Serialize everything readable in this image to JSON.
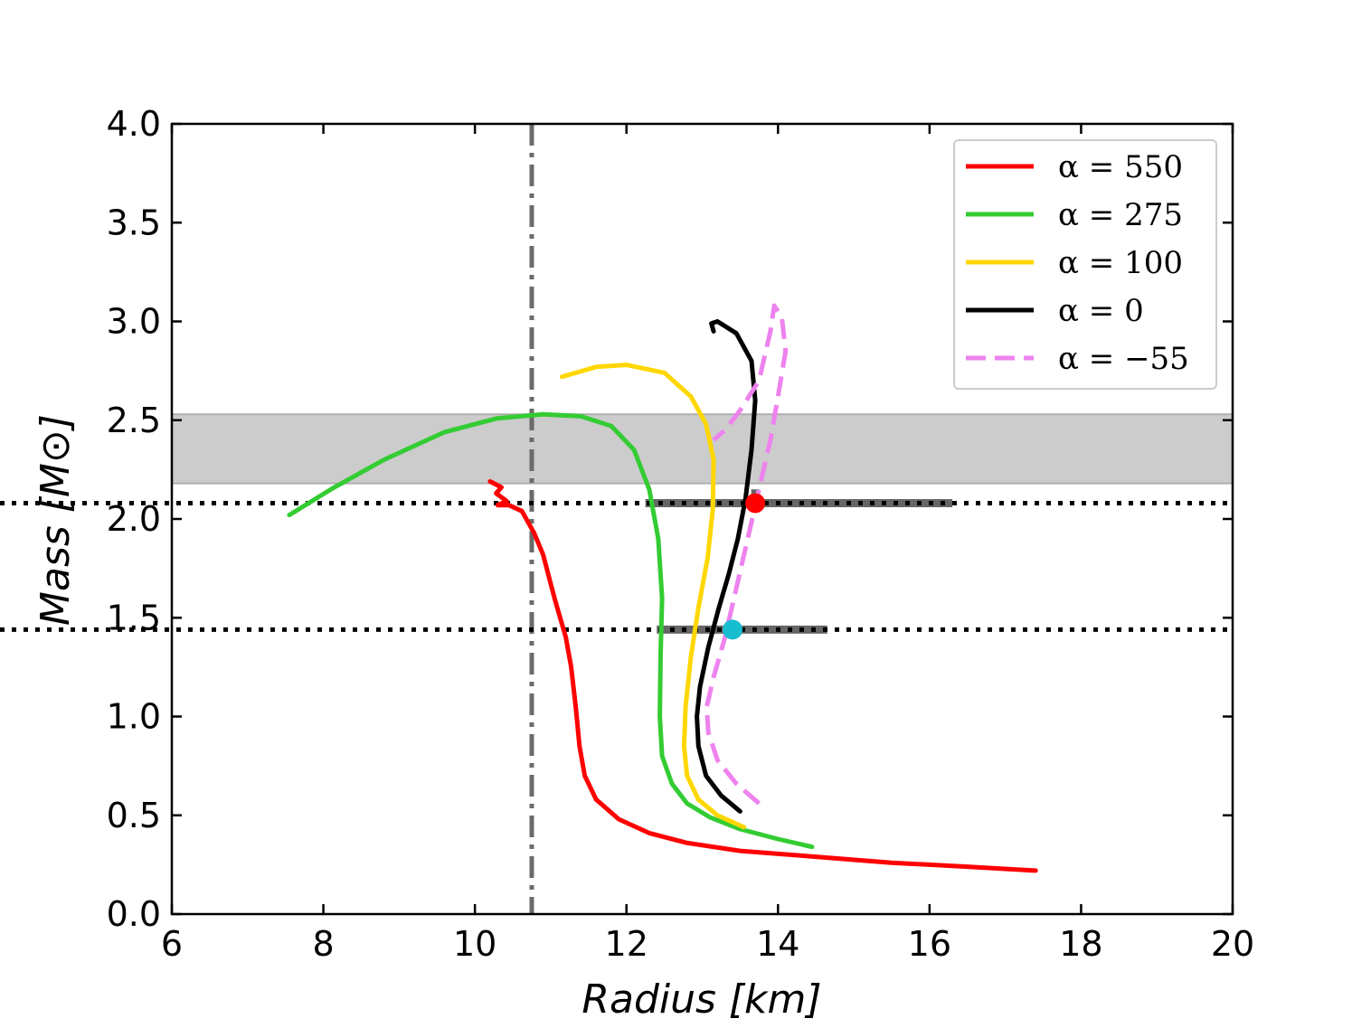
{
  "chart_data": {
    "type": "line",
    "title": "",
    "xlabel": "Radius [km]",
    "ylabel": "Mass [M⊙]",
    "xlim": [
      6,
      20
    ],
    "ylim": [
      0,
      4.0
    ],
    "xticks": [
      "6",
      "8",
      "10",
      "12",
      "14",
      "16",
      "18",
      "20"
    ],
    "yticks": [
      "0.0",
      "0.5",
      "1.0",
      "1.5",
      "2.0",
      "2.5",
      "3.0",
      "3.5",
      "4.0"
    ],
    "grid": false,
    "legend_position": "top-right",
    "colors": {
      "band": "#cccccc",
      "vline": "#6b6b6b",
      "errorbar": "#555555"
    },
    "series": [
      {
        "name": "α = 550",
        "color": "#ff0000",
        "dash": "solid",
        "points": [
          [
            17.4,
            0.22
          ],
          [
            16.5,
            0.24
          ],
          [
            15.5,
            0.26
          ],
          [
            14.5,
            0.29
          ],
          [
            13.5,
            0.32
          ],
          [
            12.8,
            0.36
          ],
          [
            12.3,
            0.41
          ],
          [
            11.9,
            0.48
          ],
          [
            11.6,
            0.58
          ],
          [
            11.45,
            0.7
          ],
          [
            11.38,
            0.85
          ],
          [
            11.33,
            1.05
          ],
          [
            11.27,
            1.25
          ],
          [
            11.2,
            1.4
          ],
          [
            11.05,
            1.6
          ],
          [
            10.9,
            1.82
          ],
          [
            10.78,
            1.93
          ],
          [
            10.62,
            2.04
          ],
          [
            10.45,
            2.07
          ],
          [
            10.3,
            2.07
          ],
          [
            10.42,
            2.09
          ],
          [
            10.28,
            2.13
          ],
          [
            10.35,
            2.16
          ],
          [
            10.2,
            2.19
          ]
        ]
      },
      {
        "name": "α = 275",
        "color": "#33cc33",
        "dash": "solid",
        "points": [
          [
            14.45,
            0.34
          ],
          [
            14.0,
            0.38
          ],
          [
            13.5,
            0.43
          ],
          [
            13.1,
            0.49
          ],
          [
            12.8,
            0.56
          ],
          [
            12.6,
            0.66
          ],
          [
            12.47,
            0.8
          ],
          [
            12.44,
            1.0
          ],
          [
            12.45,
            1.3
          ],
          [
            12.47,
            1.6
          ],
          [
            12.42,
            1.9
          ],
          [
            12.3,
            2.15
          ],
          [
            12.1,
            2.35
          ],
          [
            11.8,
            2.47
          ],
          [
            11.4,
            2.52
          ],
          [
            10.9,
            2.53
          ],
          [
            10.3,
            2.51
          ],
          [
            9.6,
            2.44
          ],
          [
            8.8,
            2.3
          ],
          [
            8.1,
            2.15
          ],
          [
            7.55,
            2.02
          ]
        ]
      },
      {
        "name": "α = 100",
        "color": "#ffd700",
        "dash": "solid",
        "points": [
          [
            13.55,
            0.44
          ],
          [
            13.2,
            0.5
          ],
          [
            12.95,
            0.58
          ],
          [
            12.8,
            0.7
          ],
          [
            12.76,
            0.85
          ],
          [
            12.78,
            1.05
          ],
          [
            12.85,
            1.3
          ],
          [
            12.95,
            1.55
          ],
          [
            13.07,
            1.8
          ],
          [
            13.14,
            2.05
          ],
          [
            13.15,
            2.3
          ],
          [
            13.05,
            2.48
          ],
          [
            12.85,
            2.62
          ],
          [
            12.5,
            2.74
          ],
          [
            12.0,
            2.78
          ],
          [
            11.6,
            2.77
          ],
          [
            11.15,
            2.72
          ]
        ]
      },
      {
        "name": "α = 0",
        "color": "#000000",
        "dash": "solid",
        "points": [
          [
            13.5,
            0.52
          ],
          [
            13.25,
            0.6
          ],
          [
            13.05,
            0.7
          ],
          [
            12.95,
            0.85
          ],
          [
            12.93,
            1.0
          ],
          [
            12.97,
            1.15
          ],
          [
            13.08,
            1.35
          ],
          [
            13.22,
            1.55
          ],
          [
            13.35,
            1.72
          ],
          [
            13.47,
            1.9
          ],
          [
            13.57,
            2.1
          ],
          [
            13.65,
            2.35
          ],
          [
            13.7,
            2.6
          ],
          [
            13.65,
            2.8
          ],
          [
            13.45,
            2.94
          ],
          [
            13.2,
            3.0
          ],
          [
            13.12,
            2.99
          ],
          [
            13.15,
            2.95
          ]
        ]
      },
      {
        "name": "α = −55",
        "color": "#ee82ee",
        "dash": "dashed",
        "points": [
          [
            13.75,
            0.56
          ],
          [
            13.45,
            0.66
          ],
          [
            13.2,
            0.78
          ],
          [
            13.08,
            0.92
          ],
          [
            13.06,
            1.05
          ],
          [
            13.15,
            1.2
          ],
          [
            13.3,
            1.4
          ],
          [
            13.45,
            1.65
          ],
          [
            13.6,
            1.9
          ],
          [
            13.75,
            2.15
          ],
          [
            13.9,
            2.4
          ],
          [
            14.0,
            2.62
          ],
          [
            14.1,
            2.85
          ],
          [
            14.05,
            3.02
          ],
          [
            13.95,
            3.08
          ],
          [
            13.9,
            2.95
          ],
          [
            13.75,
            2.7
          ],
          [
            13.5,
            2.55
          ],
          [
            13.3,
            2.45
          ],
          [
            13.15,
            2.4
          ]
        ]
      }
    ],
    "horizontal_lines": [
      {
        "y": 2.08,
        "style": "dotted",
        "color": "#000000"
      },
      {
        "y": 1.44,
        "style": "dotted",
        "color": "#000000"
      }
    ],
    "vertical_lines": [
      {
        "x": 10.75,
        "style": "dashdot",
        "color": "#6b6b6b"
      }
    ],
    "band": {
      "ymin": 2.18,
      "ymax": 2.53,
      "color": "#cccccc"
    },
    "markers": [
      {
        "x": 13.7,
        "y": 2.08,
        "color": "#ff0000",
        "xerr": [
          12.25,
          16.3
        ],
        "yerr": [
          2.04,
          2.15
        ]
      },
      {
        "x": 13.4,
        "y": 1.44,
        "color": "#17becf",
        "xerr": [
          12.4,
          14.65
        ],
        "yerr": null
      }
    ]
  }
}
